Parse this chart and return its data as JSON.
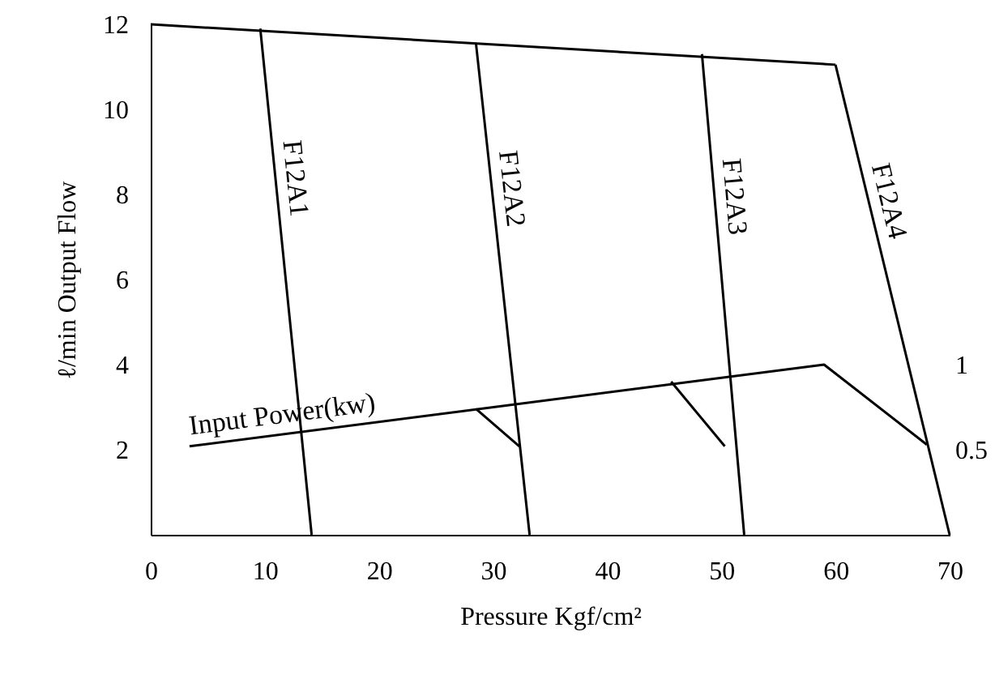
{
  "chart_data": {
    "type": "line",
    "xlabel": "Pressure Kgf/cm²",
    "ylabel": "ℓ/min Output Flow",
    "xlim": [
      0,
      70
    ],
    "xticks": [
      0,
      10,
      20,
      30,
      40,
      50,
      60,
      70
    ],
    "ylim": [
      0,
      12
    ],
    "yticks": [
      2,
      4,
      6,
      8,
      10,
      12
    ],
    "y2lim": [
      0,
      3
    ],
    "y2ticks": [
      0.5,
      1
    ],
    "grid": false,
    "marker": "none",
    "line_style": "solid",
    "series": [
      {
        "color": "#000000",
        "x": [
          0,
          60
        ],
        "values": [
          12,
          11.05
        ]
      },
      {
        "name": "F12A1",
        "color": "#000000",
        "x": [
          9.6,
          14.1
        ],
        "values": [
          11.9,
          0
        ]
      },
      {
        "name": "F12A2",
        "color": "#000000",
        "x": [
          28.5,
          33.2
        ],
        "values": [
          11.55,
          0
        ]
      },
      {
        "name": "F12A3",
        "color": "#000000",
        "x": [
          48.3,
          52
        ],
        "values": [
          11.3,
          0
        ]
      },
      {
        "name": "F12A4",
        "color": "#000000",
        "x": [
          60,
          70
        ],
        "values": [
          11.05,
          0
        ]
      },
      {
        "name": "Input Power(kw)",
        "axis": "y2",
        "color": "#000000",
        "x": [
          3.4,
          59,
          68
        ],
        "values": [
          0.52,
          1.0,
          0.53
        ]
      },
      {
        "axis": "y2",
        "color": "#000000",
        "x": [
          28.5,
          32.3
        ],
        "values": [
          0.74,
          0.52
        ]
      },
      {
        "axis": "y2",
        "color": "#000000",
        "x": [
          45.6,
          50.3
        ],
        "values": [
          0.9,
          0.52
        ]
      }
    ]
  }
}
